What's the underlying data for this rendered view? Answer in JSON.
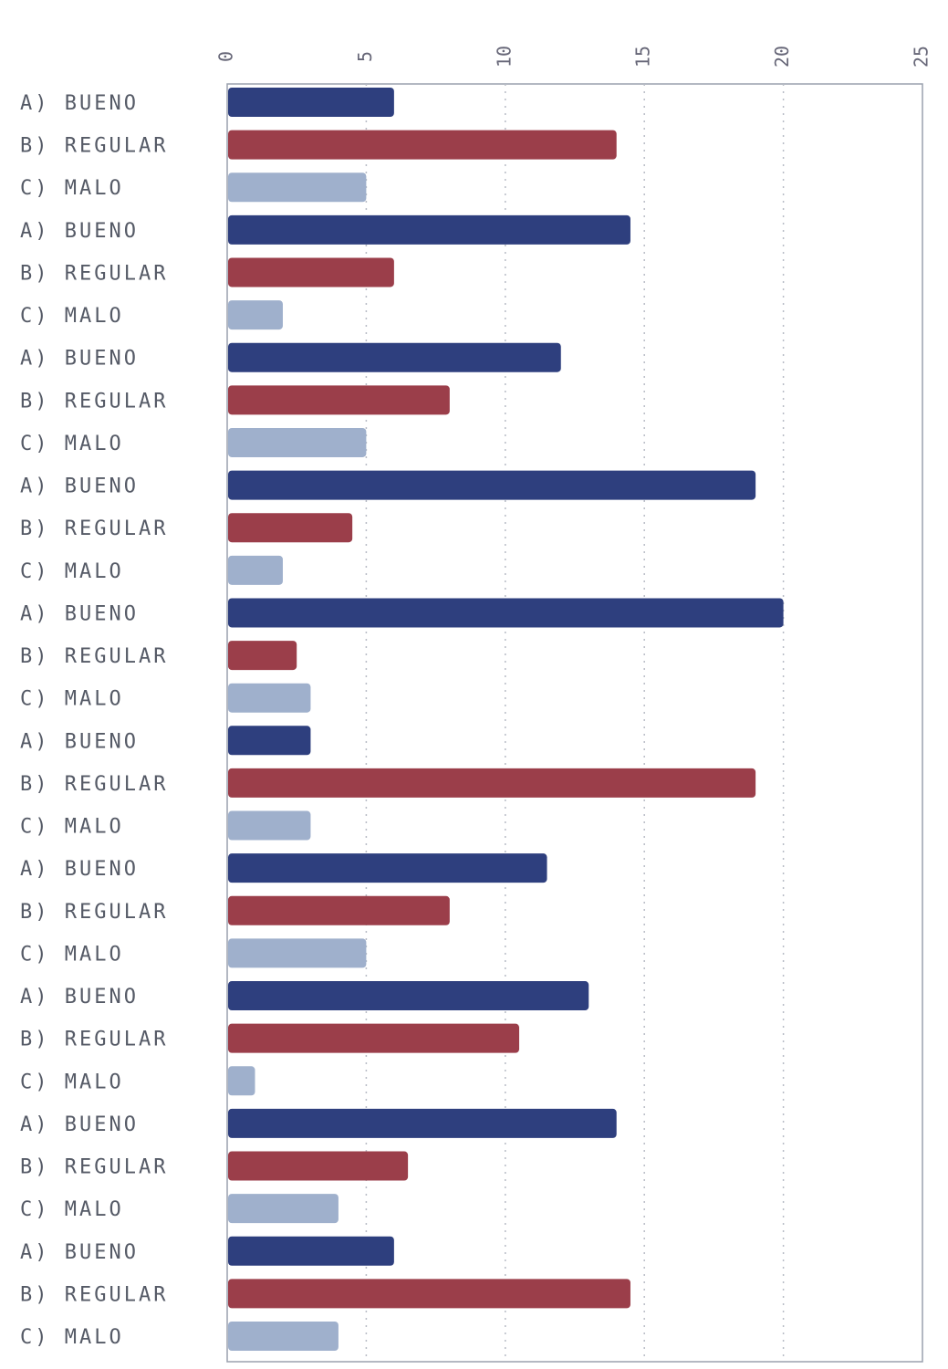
{
  "chart_data": {
    "type": "bar",
    "orientation": "horizontal",
    "title": "",
    "xlabel": "",
    "ylabel": "",
    "xlim": [
      0,
      25
    ],
    "x_ticks": [
      "0",
      "5",
      "10",
      "15",
      "20",
      "25"
    ],
    "grid": "vertical dotted",
    "legend": "none",
    "categories": [
      "A) BUENO",
      "B) REGULAR",
      "C) MALO",
      "A) BUENO",
      "B) REGULAR",
      "C) MALO",
      "A) BUENO",
      "B) REGULAR",
      "C) MALO",
      "A) BUENO",
      "B) REGULAR",
      "C) MALO",
      "A) BUENO",
      "B) REGULAR",
      "C) MALO",
      "A) BUENO",
      "B) REGULAR",
      "C) MALO",
      "A) BUENO",
      "B) REGULAR",
      "C) MALO",
      "A) BUENO",
      "B) REGULAR",
      "C) MALO",
      "A) BUENO",
      "B) REGULAR",
      "C) MALO",
      "A) BUENO",
      "B) REGULAR",
      "C) MALO"
    ],
    "values": [
      6,
      14,
      5,
      14.5,
      6,
      2,
      12,
      8,
      5,
      19,
      4.5,
      2,
      20,
      2.5,
      3,
      3,
      19,
      3,
      11.5,
      8,
      5,
      13,
      10.5,
      1,
      14,
      6.5,
      4,
      6,
      14.5,
      4
    ],
    "colors": {
      "A": "#2e3f7e",
      "B": "#9b3e4a",
      "C": "#9fb0cc",
      "grid": "#b8bcc6",
      "axis": "#9aa0ad"
    }
  }
}
